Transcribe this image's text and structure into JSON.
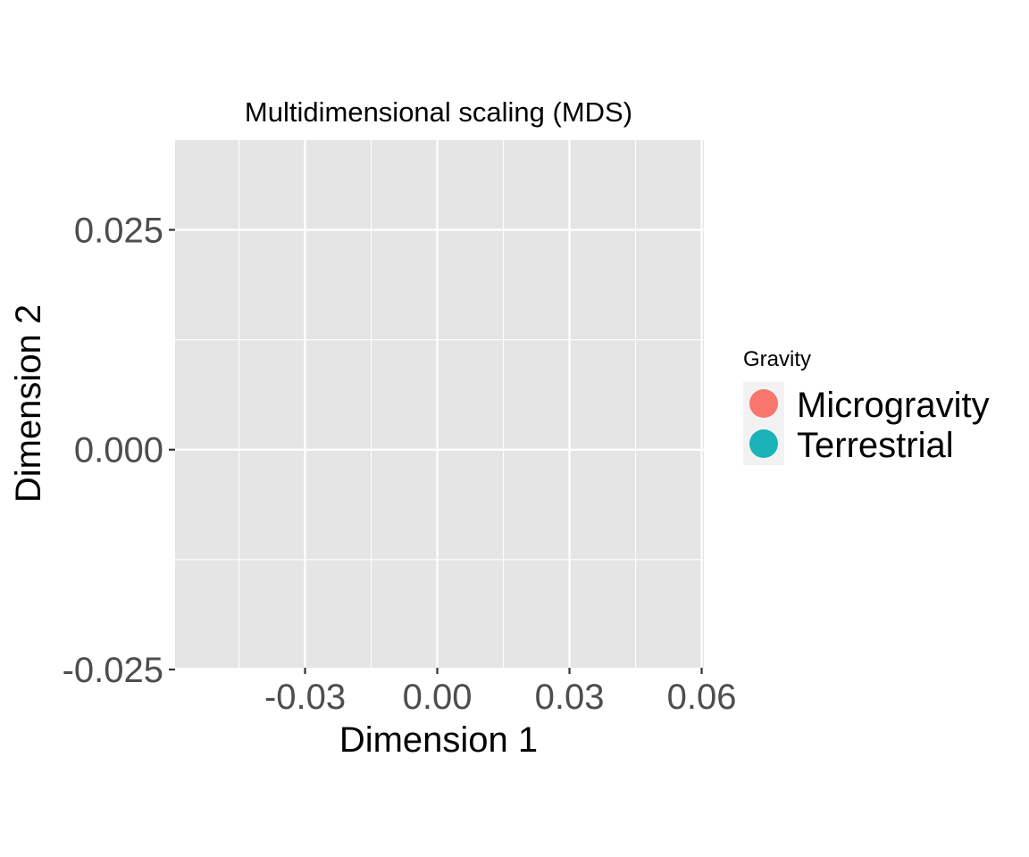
{
  "chart_data": {
    "type": "scatter",
    "title": "Multidimensional scaling (MDS)",
    "xlabel": "Dimension 1",
    "ylabel": "Dimension 2",
    "xlim": [
      -0.0595,
      0.0605
    ],
    "ylim": [
      -0.0248,
      0.0352
    ],
    "x_ticks": [
      -0.03,
      0.0,
      0.03,
      0.06
    ],
    "x_tick_labels": [
      "-0.03",
      "0.00",
      "0.03",
      "0.06"
    ],
    "y_ticks": [
      -0.025,
      0.0,
      0.025
    ],
    "y_tick_labels": [
      "-0.025",
      "0.000",
      "0.025"
    ],
    "grid": true,
    "panel_background": "#e5e5e5",
    "grid_color": "#ffffff",
    "legend": {
      "title": "Gravity",
      "placement": "right",
      "entries": [
        {
          "label": "Microgravity",
          "color": "#f8766d"
        },
        {
          "label": "Terrestrial",
          "color": "#19b3b8"
        }
      ]
    },
    "series": [
      {
        "name": "Microgravity",
        "color": "#f8766d",
        "points": []
      },
      {
        "name": "Terrestrial",
        "color": "#19b3b8",
        "points": []
      }
    ]
  }
}
